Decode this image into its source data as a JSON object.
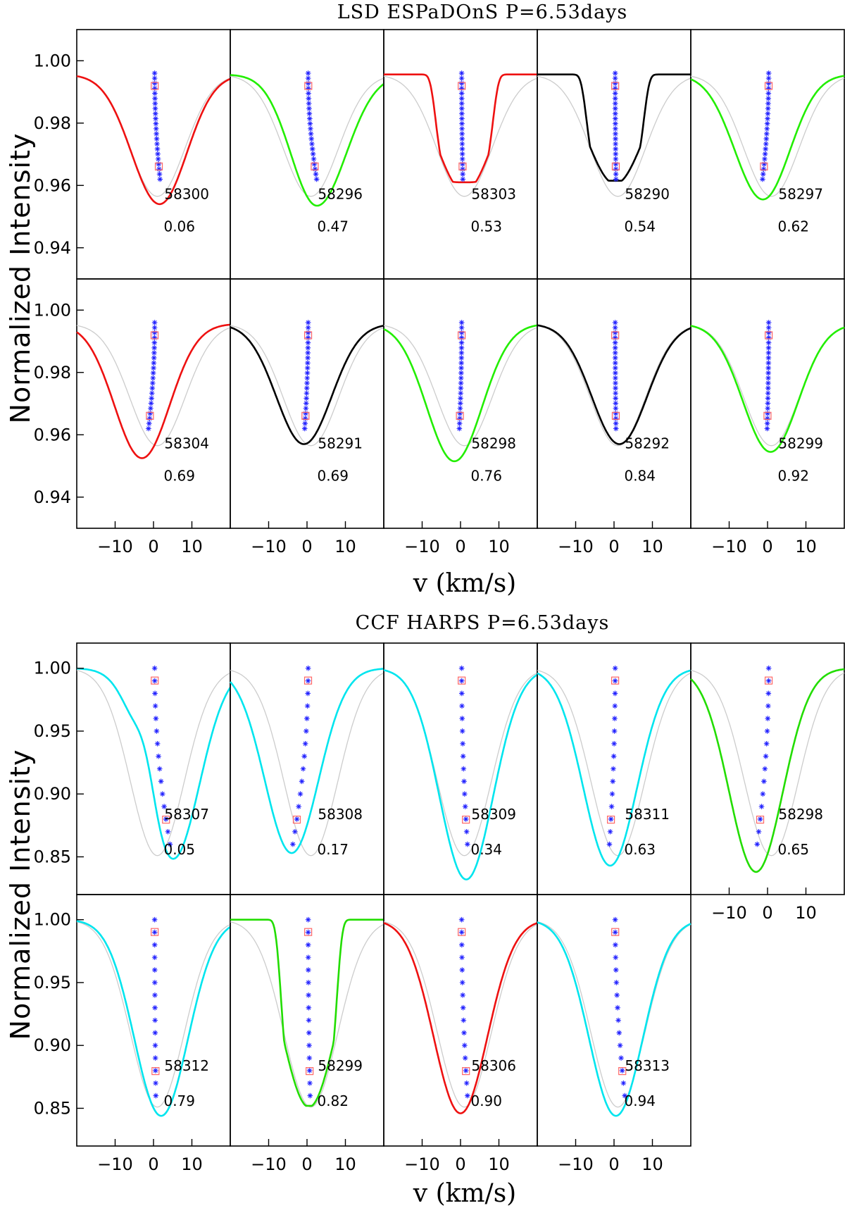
{
  "chart_data": [
    {
      "type": "line",
      "title": "LSD ESPaDOnS   P=6.53days",
      "xlabel": "v (km/s)",
      "ylabel": "Normalized Intensity",
      "xlim": [
        -20,
        20
      ],
      "ylim": [
        0.93,
        1.01
      ],
      "xticks": [
        -10,
        0,
        10
      ],
      "xtick_labels": [
        "−10",
        "0",
        "10"
      ],
      "yticks": [
        0.94,
        0.96,
        0.98,
        1.0
      ],
      "ytick_labels": [
        "0.94",
        "0.96",
        "0.98",
        "1.00"
      ],
      "colors": {
        "red": "#ee1111",
        "green": "#22ee00",
        "black": "#000000",
        "reference": "#cccccc",
        "bisector": "#2222ff",
        "marker": "#ff6666"
      },
      "panels": [
        {
          "date": "58300",
          "phase": "0.06",
          "color": "red",
          "depth": 0.954,
          "center": 1.6,
          "skew": 0.35,
          "bisector_tilt": 1.4
        },
        {
          "date": "58296",
          "phase": "0.47",
          "color": "green",
          "depth": 0.9535,
          "center": 2.6,
          "skew": -1.1,
          "bisector_tilt": 2.2
        },
        {
          "date": "58303",
          "phase": "0.53",
          "color": "red",
          "depth": 0.958,
          "center": 1.0,
          "skew": 0.0,
          "bisector_tilt": 0.3,
          "flat": 0.961
        },
        {
          "date": "58290",
          "phase": "0.54",
          "color": "black",
          "depth": 0.9605,
          "center": 0.3,
          "skew": 0.0,
          "bisector_tilt": 0.2,
          "flat": 0.9615
        },
        {
          "date": "58297",
          "phase": "0.62",
          "color": "green",
          "depth": 0.9555,
          "center": -1.2,
          "skew": 0.4,
          "bisector_tilt": -1.6
        },
        {
          "date": "58304",
          "phase": "0.69",
          "color": "red",
          "depth": 0.9525,
          "center": -3.0,
          "skew": 0.0,
          "bisector_tilt": -1.6
        },
        {
          "date": "58291",
          "phase": "0.69",
          "color": "black",
          "depth": 0.957,
          "center": -0.8,
          "skew": 0.0,
          "bisector_tilt": -0.9
        },
        {
          "date": "58298",
          "phase": "0.76",
          "color": "green",
          "depth": 0.9515,
          "center": -1.6,
          "skew": 0.0,
          "bisector_tilt": -0.6
        },
        {
          "date": "58292",
          "phase": "0.84",
          "color": "black",
          "depth": 0.957,
          "center": 1.4,
          "skew": 0.0,
          "bisector_tilt": 0.2
        },
        {
          "date": "58299",
          "phase": "0.92",
          "color": "green",
          "depth": 0.9545,
          "center": 0.8,
          "skew": 0.0,
          "bisector_tilt": -0.4
        }
      ]
    },
    {
      "type": "line",
      "title": "CCF HARPS   P=6.53days",
      "xlabel": "v (km/s)",
      "ylabel": "Normalized Intensity",
      "xlim": [
        -20,
        20
      ],
      "ylim": [
        0.82,
        1.02
      ],
      "xticks": [
        -10,
        0,
        10
      ],
      "xtick_labels": [
        "−10",
        "0",
        "10"
      ],
      "yticks": [
        0.85,
        0.9,
        0.95,
        1.0
      ],
      "ytick_labels": [
        "0.85",
        "0.90",
        "0.95",
        "1.00"
      ],
      "colors": {
        "cyan": "#00e5ee",
        "green": "#22dd00",
        "red": "#ee1111",
        "reference": "#cccccc",
        "bisector": "#2222ff",
        "marker": "#ff6666"
      },
      "panels": [
        {
          "date": "58307",
          "phase": "0.05",
          "color": "cyan",
          "depth": 0.848,
          "center": 5.0,
          "skew": 0.0,
          "bisector_tilt": 4.0,
          "shoulder": 0.865
        },
        {
          "date": "58308",
          "phase": "0.17",
          "color": "cyan",
          "depth": 0.853,
          "center": -4.0,
          "skew": 0.0,
          "bisector_tilt": -4.0
        },
        {
          "date": "58309",
          "phase": "0.34",
          "color": "cyan",
          "depth": 0.832,
          "center": 1.5,
          "skew": 0.0,
          "bisector_tilt": 1.5
        },
        {
          "date": "58311",
          "phase": "0.63",
          "color": "cyan",
          "depth": 0.843,
          "center": -1.0,
          "skew": 0.0,
          "bisector_tilt": -1.5
        },
        {
          "date": "58298",
          "phase": "0.65",
          "color": "green",
          "depth": 0.838,
          "center": -3.0,
          "skew": 0.0,
          "bisector_tilt": -3.0
        },
        {
          "date": "58312",
          "phase": "0.79",
          "color": "cyan",
          "depth": 0.844,
          "center": 2.0,
          "skew": 0.0,
          "bisector_tilt": 0.3
        },
        {
          "date": "58299",
          "phase": "0.82",
          "color": "green",
          "depth": 0.851,
          "center": 0.5,
          "skew": 0.0,
          "bisector_tilt": 0.5,
          "flat": 0.852
        },
        {
          "date": "58306",
          "phase": "0.90",
          "color": "red",
          "depth": 0.846,
          "center": 0.0,
          "skew": 0.0,
          "bisector_tilt": 1.5
        },
        {
          "date": "58313",
          "phase": "0.94",
          "color": "cyan",
          "depth": 0.844,
          "center": 0.5,
          "skew": 0.0,
          "bisector_tilt": 2.5
        }
      ]
    }
  ]
}
